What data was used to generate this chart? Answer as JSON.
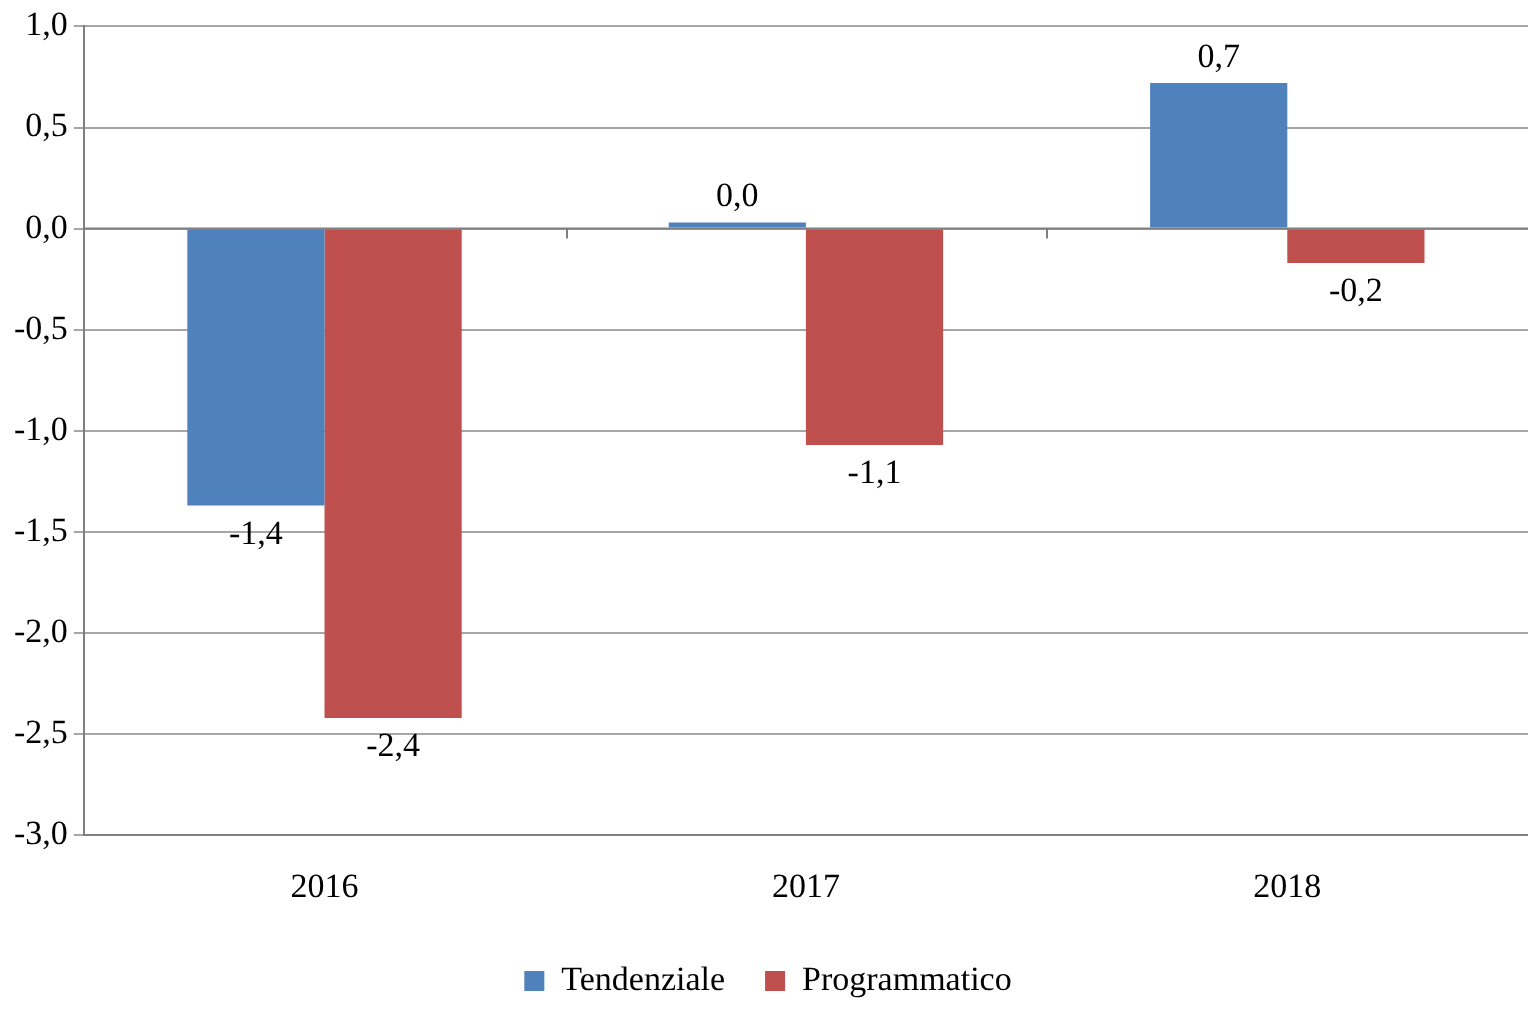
{
  "chart_data": {
    "type": "bar",
    "categories": [
      "2016",
      "2017",
      "2018"
    ],
    "series": [
      {
        "name": "Tendenziale",
        "color": "#4f81bd",
        "values": [
          -1.37,
          0.03,
          0.72
        ],
        "value_labels": [
          "-1,4",
          "0,0",
          "0,7"
        ]
      },
      {
        "name": "Programmatico",
        "color": "#c0504d",
        "values": [
          -2.42,
          -1.07,
          -0.17
        ],
        "value_labels": [
          "-2,4",
          "-1,1",
          "-0,2"
        ]
      }
    ],
    "ylim": [
      -3,
      1
    ],
    "yticks": [
      {
        "value": -3,
        "label": "-3,0"
      },
      {
        "value": -2.5,
        "label": "-2,5"
      },
      {
        "value": -2,
        "label": "-2,0"
      },
      {
        "value": -1.5,
        "label": "-1,5"
      },
      {
        "value": -1,
        "label": "-1,0"
      },
      {
        "value": -0.5,
        "label": "-0,5"
      },
      {
        "value": 0,
        "label": "0,0"
      },
      {
        "value": 0.5,
        "label": "0,5"
      },
      {
        "value": 1,
        "label": "1,0"
      }
    ],
    "grid": "y",
    "legend": "bottom"
  }
}
